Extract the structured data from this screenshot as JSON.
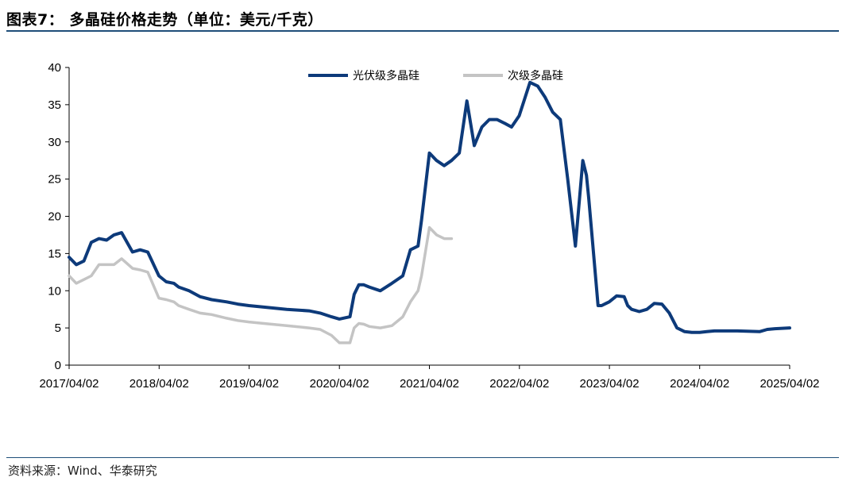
{
  "header": {
    "title": "图表7：  多晶硅价格走势（单位：美元/千克）"
  },
  "footer": {
    "source": "资料来源：Wind、华泰研究"
  },
  "colors": {
    "series_primary": "#0d3a7a",
    "series_secondary": "#c4c4c4",
    "rule": "#1f4e79"
  },
  "chart_data": {
    "type": "line",
    "title": "",
    "xlabel": "",
    "ylabel": "",
    "ylim": [
      0,
      40
    ],
    "yticks": [
      0,
      5,
      10,
      15,
      20,
      25,
      30,
      35,
      40
    ],
    "xlim": [
      "2017/04/02",
      "2025/04/02"
    ],
    "xticks": [
      "2017/04/02",
      "2018/04/02",
      "2019/04/02",
      "2020/04/02",
      "2021/04/02",
      "2022/04/02",
      "2023/04/02",
      "2024/04/02",
      "2025/04/02"
    ],
    "grid": false,
    "legend_position": "top-center",
    "series": [
      {
        "name": "光伏级多晶硅",
        "color": "#0d3a7a",
        "x": [
          "2017/04/02",
          "2017/05/01",
          "2017/06/01",
          "2017/07/01",
          "2017/08/01",
          "2017/09/01",
          "2017/10/01",
          "2017/11/01",
          "2017/12/15",
          "2018/01/15",
          "2018/02/15",
          "2018/04/01",
          "2018/05/01",
          "2018/06/01",
          "2018/06/20",
          "2018/08/01",
          "2018/09/15",
          "2018/11/01",
          "2019/01/01",
          "2019/02/15",
          "2019/04/01",
          "2019/06/01",
          "2019/09/01",
          "2019/12/01",
          "2020/01/15",
          "2020/03/01",
          "2020/04/02",
          "2020/05/15",
          "2020/06/01",
          "2020/06/20",
          "2020/07/10",
          "2020/08/01",
          "2020/09/15",
          "2020/11/01",
          "2020/12/15",
          "2021/01/15",
          "2021/02/15",
          "2021/03/01",
          "2021/04/02",
          "2021/05/01",
          "2021/06/01",
          "2021/07/01",
          "2021/08/01",
          "2021/09/01",
          "2021/10/01",
          "2021/11/01",
          "2021/12/01",
          "2022/01/01",
          "2022/02/01",
          "2022/03/01",
          "2022/04/01",
          "2022/05/15",
          "2022/06/15",
          "2022/07/15",
          "2022/08/15",
          "2022/09/15",
          "2022/10/15",
          "2022/11/15",
          "2022/12/15",
          "2022/12/30",
          "2023/01/08",
          "2023/01/20",
          "2023/02/15",
          "2023/03/01",
          "2023/04/01",
          "2023/05/01",
          "2023/06/01",
          "2023/06/15",
          "2023/07/01",
          "2023/08/01",
          "2023/09/01",
          "2023/10/01",
          "2023/11/01",
          "2023/12/01",
          "2024/01/01",
          "2024/02/01",
          "2024/03/01",
          "2024/04/02",
          "2024/05/01",
          "2024/06/01",
          "2024/09/01",
          "2024/12/01",
          "2025/01/01",
          "2025/02/01",
          "2025/04/02"
        ],
        "values": [
          14.5,
          13.5,
          14.0,
          16.5,
          17.0,
          16.8,
          17.5,
          17.8,
          15.2,
          15.5,
          15.2,
          12.0,
          11.2,
          11.0,
          10.5,
          10.0,
          9.2,
          8.8,
          8.5,
          8.2,
          8.0,
          7.8,
          7.5,
          7.3,
          7.0,
          6.5,
          6.2,
          6.5,
          9.5,
          10.8,
          10.8,
          10.5,
          10.0,
          11.0,
          12.0,
          15.5,
          16.0,
          19.5,
          28.5,
          27.5,
          26.8,
          27.5,
          28.5,
          35.5,
          29.5,
          32.0,
          33.0,
          33.0,
          32.5,
          32.0,
          33.5,
          38.0,
          37.5,
          36.0,
          34.0,
          33.0,
          25.0,
          16.0,
          27.5,
          25.5,
          22.5,
          18.0,
          8.0,
          8.0,
          8.5,
          9.3,
          9.2,
          8.0,
          7.5,
          7.2,
          7.5,
          8.3,
          8.2,
          7.0,
          5.0,
          4.5,
          4.4,
          4.4,
          4.5,
          4.6,
          4.6,
          4.5,
          4.8,
          4.9,
          5.0
        ]
      },
      {
        "name": "次级多晶硅",
        "color": "#c4c4c4",
        "x": [
          "2017/04/02",
          "2017/05/01",
          "2017/06/01",
          "2017/07/01",
          "2017/08/01",
          "2017/09/01",
          "2017/10/01",
          "2017/11/01",
          "2017/12/15",
          "2018/01/15",
          "2018/02/15",
          "2018/04/01",
          "2018/05/01",
          "2018/06/01",
          "2018/06/20",
          "2018/08/01",
          "2018/09/15",
          "2018/11/01",
          "2019/01/01",
          "2019/02/15",
          "2019/04/01",
          "2019/06/01",
          "2019/09/01",
          "2019/12/01",
          "2020/01/15",
          "2020/03/01",
          "2020/04/02",
          "2020/05/15",
          "2020/06/01",
          "2020/06/20",
          "2020/07/10",
          "2020/08/01",
          "2020/09/15",
          "2020/11/01",
          "2020/12/15",
          "2021/01/15",
          "2021/02/15",
          "2021/03/01",
          "2021/04/02",
          "2021/05/01",
          "2021/06/01",
          "2021/06/15",
          "2021/07/01"
        ],
        "values": [
          12.0,
          11.0,
          11.5,
          12.0,
          13.5,
          13.5,
          13.5,
          14.3,
          13.0,
          12.8,
          12.5,
          9.0,
          8.8,
          8.5,
          8.0,
          7.5,
          7.0,
          6.8,
          6.3,
          6.0,
          5.8,
          5.6,
          5.3,
          5.0,
          4.8,
          4.0,
          3.0,
          3.0,
          5.0,
          5.6,
          5.5,
          5.2,
          5.0,
          5.3,
          6.5,
          8.5,
          10.0,
          12.0,
          18.5,
          17.5,
          17.0,
          17.0,
          17.0
        ]
      }
    ]
  }
}
